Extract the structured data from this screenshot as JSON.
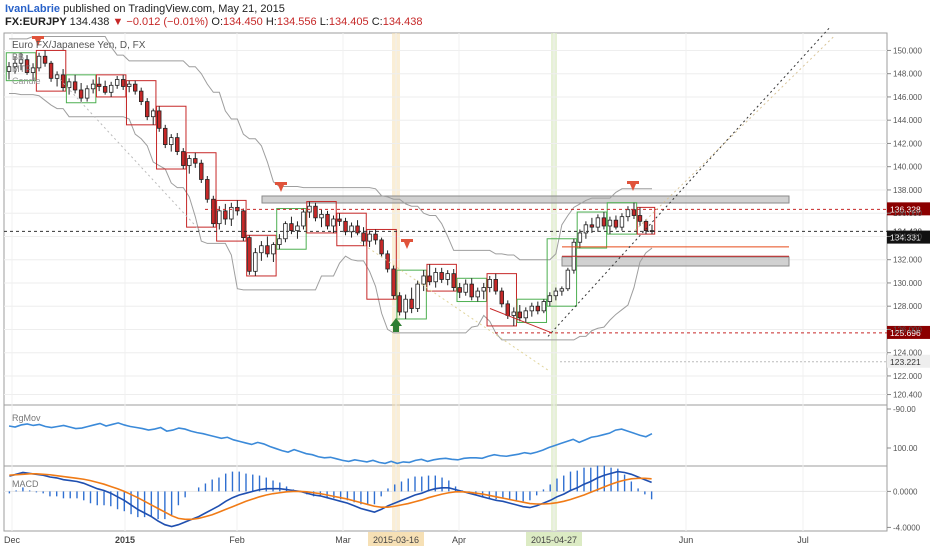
{
  "header": {
    "author": "IvanLabrie",
    "published_text": "published on TradingView.com, May 21, 2015",
    "symbol": "FX:EURJPY",
    "last": "134.438",
    "change": "−0.012 (−0.01%)",
    "open_label": "O:",
    "open": "134.450",
    "high_label": "H:",
    "high": "134.556",
    "low_label": "L:",
    "low": "134.405",
    "close_label": "C:",
    "close": "134.438"
  },
  "legend": {
    "title": "Euro FX/Japanese Yen, D, FX",
    "bb": "BB",
    "mtf": "MTF",
    "other": "Candle"
  },
  "colors": {
    "up": "#2e7d32",
    "down": "#c62828",
    "box_up": "#4caf50",
    "box_down": "#c62828",
    "bb": "#9e9e9e",
    "rgmov": "#3b8ad9",
    "macd": "#1f4fb0",
    "signal": "#f07b16",
    "hist": "#2f6fd1",
    "resistance_zone": "#bdbdbd",
    "level_tag": "#8b0000",
    "price_tag": "#111111"
  },
  "chart_data": [
    {
      "type": "candlestick",
      "title": "Euro FX/Japanese Yen, D, FX",
      "x_tick_labels": [
        "Dec",
        "2015",
        "Feb",
        "Mar",
        "2015-03-16",
        "Apr",
        "2015-04-27",
        "Jun",
        "Jul"
      ],
      "ylim": [
        119.5,
        151.5
      ],
      "y_ticks": [
        "150.000",
        "148.000",
        "146.000",
        "144.000",
        "142.000",
        "140.000",
        "138.000",
        "136.000",
        "134.000",
        "132.000",
        "130.000",
        "128.000",
        "126.000",
        "124.000",
        "122.000",
        "120.400"
      ],
      "ohlc": [
        [
          148.2,
          149.0,
          147.5,
          148.6
        ],
        [
          148.6,
          149.5,
          148.0,
          148.9
        ],
        [
          148.9,
          149.8,
          148.3,
          149.2
        ],
        [
          149.2,
          149.6,
          147.9,
          148.1
        ],
        [
          148.1,
          148.9,
          147.4,
          148.5
        ],
        [
          148.5,
          149.8,
          148.2,
          149.5
        ],
        [
          149.5,
          150.0,
          148.6,
          148.9
        ],
        [
          148.9,
          149.1,
          147.3,
          147.6
        ],
        [
          147.6,
          148.2,
          146.9,
          147.9
        ],
        [
          147.9,
          148.4,
          146.5,
          146.8
        ],
        [
          146.8,
          147.6,
          146.2,
          147.3
        ],
        [
          147.3,
          147.9,
          146.3,
          146.6
        ],
        [
          146.6,
          147.2,
          145.5,
          145.9
        ],
        [
          145.9,
          147.0,
          145.6,
          146.7
        ],
        [
          146.7,
          147.5,
          146.3,
          147.1
        ],
        [
          147.1,
          147.7,
          146.5,
          146.9
        ],
        [
          146.9,
          147.4,
          146.2,
          146.4
        ],
        [
          146.4,
          147.3,
          146.0,
          147.0
        ],
        [
          147.0,
          147.8,
          146.7,
          147.5
        ],
        [
          147.5,
          147.9,
          146.6,
          146.9
        ],
        [
          146.9,
          147.4,
          146.4,
          147.1
        ],
        [
          147.1,
          147.4,
          146.2,
          146.5
        ],
        [
          146.5,
          146.8,
          145.3,
          145.6
        ],
        [
          145.6,
          145.9,
          144.0,
          144.3
        ],
        [
          144.3,
          145.0,
          143.6,
          144.8
        ],
        [
          144.8,
          145.2,
          143.0,
          143.3
        ],
        [
          143.3,
          143.6,
          141.6,
          141.9
        ],
        [
          141.9,
          142.8,
          141.3,
          142.5
        ],
        [
          142.5,
          142.9,
          141.0,
          141.3
        ],
        [
          141.3,
          141.6,
          139.8,
          140.1
        ],
        [
          140.1,
          141.0,
          139.4,
          140.7
        ],
        [
          140.7,
          141.2,
          139.9,
          140.3
        ],
        [
          140.3,
          140.6,
          138.6,
          138.9
        ],
        [
          138.9,
          139.2,
          136.9,
          137.2
        ],
        [
          137.2,
          137.5,
          134.8,
          135.1
        ],
        [
          135.1,
          136.6,
          134.6,
          136.2
        ],
        [
          136.2,
          136.8,
          135.0,
          135.5
        ],
        [
          135.5,
          136.9,
          134.9,
          136.5
        ],
        [
          136.5,
          137.1,
          135.8,
          136.2
        ],
        [
          136.2,
          136.4,
          133.6,
          133.9
        ],
        [
          133.9,
          134.1,
          130.7,
          131.0
        ],
        [
          131.0,
          133.0,
          130.6,
          132.6
        ],
        [
          132.6,
          133.6,
          131.9,
          133.2
        ],
        [
          133.2,
          134.0,
          132.2,
          132.5
        ],
        [
          132.5,
          133.5,
          131.8,
          133.3
        ],
        [
          133.3,
          134.2,
          132.9,
          133.8
        ],
        [
          133.8,
          135.3,
          133.5,
          135.1
        ],
        [
          135.1,
          135.7,
          134.2,
          134.5
        ],
        [
          134.5,
          135.3,
          133.8,
          134.9
        ],
        [
          134.9,
          136.4,
          134.6,
          136.1
        ],
        [
          136.1,
          137.0,
          135.6,
          136.6
        ],
        [
          136.6,
          136.9,
          135.3,
          135.6
        ],
        [
          135.6,
          136.3,
          134.8,
          135.9
        ],
        [
          135.9,
          136.2,
          134.6,
          134.9
        ],
        [
          134.9,
          135.8,
          134.3,
          135.5
        ],
        [
          135.5,
          136.0,
          134.9,
          135.3
        ],
        [
          135.3,
          135.6,
          134.1,
          134.4
        ],
        [
          134.4,
          135.2,
          133.9,
          134.9
        ],
        [
          134.9,
          135.4,
          134.1,
          134.3
        ],
        [
          134.3,
          134.8,
          133.2,
          133.6
        ],
        [
          133.6,
          134.5,
          133.1,
          134.2
        ],
        [
          134.2,
          134.6,
          133.3,
          133.7
        ],
        [
          133.7,
          133.9,
          132.2,
          132.5
        ],
        [
          132.5,
          132.8,
          130.9,
          131.2
        ],
        [
          131.2,
          131.5,
          128.6,
          128.9
        ],
        [
          128.9,
          129.2,
          127.2,
          127.5
        ],
        [
          127.5,
          129.0,
          126.9,
          128.6
        ],
        [
          128.6,
          129.6,
          127.4,
          127.8
        ],
        [
          127.8,
          130.2,
          127.5,
          129.9
        ],
        [
          129.9,
          131.1,
          129.3,
          130.6
        ],
        [
          130.6,
          131.6,
          129.8,
          130.1
        ],
        [
          130.1,
          131.3,
          129.6,
          130.9
        ],
        [
          130.9,
          131.3,
          130.0,
          130.3
        ],
        [
          130.3,
          131.1,
          129.8,
          130.8
        ],
        [
          130.8,
          131.2,
          129.3,
          129.6
        ],
        [
          129.6,
          130.0,
          128.7,
          129.2
        ],
        [
          129.2,
          130.3,
          128.9,
          129.9
        ],
        [
          129.9,
          130.4,
          128.5,
          128.8
        ],
        [
          128.8,
          129.6,
          128.4,
          129.3
        ],
        [
          129.3,
          130.0,
          128.6,
          129.6
        ],
        [
          129.6,
          130.6,
          129.2,
          130.3
        ],
        [
          130.3,
          130.8,
          129.0,
          129.3
        ],
        [
          129.3,
          129.6,
          127.9,
          128.2
        ],
        [
          128.2,
          128.5,
          126.9,
          127.2
        ],
        [
          127.2,
          127.9,
          126.3,
          127.5
        ],
        [
          127.5,
          128.1,
          126.7,
          127.0
        ],
        [
          127.0,
          127.9,
          126.6,
          127.6
        ],
        [
          127.6,
          128.3,
          127.1,
          128.0
        ],
        [
          128.0,
          128.4,
          127.3,
          127.6
        ],
        [
          127.6,
          128.6,
          127.4,
          128.4
        ],
        [
          128.4,
          129.2,
          128.0,
          128.9
        ],
        [
          128.9,
          129.6,
          128.5,
          129.3
        ],
        [
          129.3,
          129.7,
          128.9,
          129.5
        ],
        [
          129.5,
          131.3,
          129.3,
          131.1
        ],
        [
          131.1,
          133.8,
          130.8,
          133.5
        ],
        [
          133.5,
          134.6,
          133.0,
          134.3
        ],
        [
          134.3,
          135.3,
          133.8,
          135.0
        ],
        [
          135.0,
          135.6,
          134.3,
          134.8
        ],
        [
          134.8,
          135.9,
          134.4,
          135.6
        ],
        [
          135.6,
          136.1,
          134.6,
          134.9
        ],
        [
          134.9,
          135.7,
          134.2,
          135.4
        ],
        [
          135.4,
          135.8,
          134.6,
          134.8
        ],
        [
          134.8,
          136.0,
          134.5,
          135.7
        ],
        [
          135.7,
          136.6,
          135.3,
          136.3
        ],
        [
          136.3,
          136.9,
          135.5,
          135.8
        ],
        [
          135.8,
          136.5,
          134.9,
          135.3
        ],
        [
          135.3,
          135.5,
          134.2,
          134.5
        ],
        [
          134.5,
          135.0,
          134.2,
          134.44
        ]
      ]
    },
    {
      "type": "line",
      "title": "RgMov",
      "y_ticks": [
        "-90.00",
        "100.00"
      ],
      "series": [
        {
          "values": [
            -58,
            -56,
            -60,
            -62,
            -59,
            -61,
            -57,
            -55,
            -57,
            -59,
            -56,
            -53,
            -54,
            -57,
            -60,
            -63,
            -58,
            -61,
            -64,
            -60,
            -57,
            -55,
            -53,
            -50,
            -52,
            -55,
            -48,
            -50,
            -54,
            -52,
            -48,
            -45,
            -43,
            -40,
            -37,
            -34,
            -36,
            -31,
            -28,
            -25,
            -22,
            -26,
            -23,
            -18,
            -14,
            -10,
            -7,
            -12,
            -8,
            -4,
            -2,
            2,
            4,
            3,
            6,
            9,
            11,
            8,
            10,
            12,
            9,
            13,
            15,
            11,
            15,
            12,
            13,
            9,
            7,
            11,
            8,
            6,
            5,
            7,
            8,
            5,
            4,
            4,
            5,
            1,
            -2,
            0,
            1,
            -1,
            -3,
            -6,
            -4,
            -7,
            -11,
            -16,
            -20,
            -24,
            -28,
            -32,
            -26,
            -31,
            -36,
            -38,
            -41,
            -44,
            -50,
            -52,
            -48,
            -44,
            -40,
            -37,
            -43
          ]
        }
      ]
    },
    {
      "type": "line",
      "title": "MACD",
      "y_ticks": [
        "0.0000",
        "-4.0000"
      ],
      "series": [
        {
          "name": "MACD",
          "values": [
            1.7,
            1.9,
            2.1,
            2.0,
            1.9,
            1.8,
            1.6,
            1.5,
            1.3,
            1.2,
            1.1,
            0.9,
            0.6,
            0.3,
            0.1,
            -0.2,
            -0.6,
            -1.0,
            -1.5,
            -2.0,
            -2.4,
            -2.8,
            -3.3,
            -3.7,
            -3.9,
            -3.7,
            -3.4,
            -3.1,
            -2.8,
            -2.4,
            -2.0,
            -1.6,
            -1.1,
            -0.7,
            -0.4,
            -0.2,
            0.0,
            0.2,
            0.3,
            0.3,
            0.3,
            0.2,
            0.1,
            0.0,
            -0.2,
            -0.4,
            -0.5,
            -0.7,
            -0.9,
            -1.1,
            -1.3,
            -1.6,
            -1.9,
            -2.1,
            -2.3,
            -2.0,
            -1.6,
            -1.3,
            -1.0,
            -0.7,
            -0.4,
            -0.2,
            0.1,
            0.3,
            0.4,
            0.4,
            0.2,
            0.0,
            -0.2,
            -0.4,
            -0.6,
            -0.8,
            -1.0,
            -1.1,
            -1.3,
            -1.5,
            -1.7,
            -1.8,
            -1.6,
            -1.3,
            -1.0,
            -0.6,
            -0.3,
            0.1,
            0.4,
            0.8,
            1.1,
            1.5,
            1.8,
            2.0,
            2.2,
            2.1,
            1.9,
            1.6,
            1.3,
            1.0
          ]
        },
        {
          "name": "Signal",
          "values": [
            1.8,
            1.85,
            1.9,
            1.95,
            1.95,
            1.9,
            1.85,
            1.75,
            1.65,
            1.55,
            1.45,
            1.35,
            1.2,
            1.0,
            0.8,
            0.55,
            0.3,
            0.0,
            -0.35,
            -0.7,
            -1.1,
            -1.5,
            -1.9,
            -2.3,
            -2.7,
            -3.0,
            -3.1,
            -3.1,
            -3.0,
            -2.8,
            -2.6,
            -2.3,
            -2.0,
            -1.7,
            -1.4,
            -1.1,
            -0.85,
            -0.6,
            -0.4,
            -0.25,
            -0.15,
            -0.05,
            0.0,
            0.0,
            -0.05,
            -0.15,
            -0.25,
            -0.4,
            -0.55,
            -0.7,
            -0.85,
            -1.05,
            -1.25,
            -1.45,
            -1.65,
            -1.75,
            -1.75,
            -1.65,
            -1.5,
            -1.35,
            -1.15,
            -0.95,
            -0.7,
            -0.5,
            -0.3,
            -0.15,
            -0.05,
            -0.05,
            -0.1,
            -0.2,
            -0.3,
            -0.45,
            -0.6,
            -0.75,
            -0.9,
            -1.05,
            -1.2,
            -1.35,
            -1.4,
            -1.4,
            -1.35,
            -1.25,
            -1.1,
            -0.9,
            -0.65,
            -0.4,
            -0.1,
            0.2,
            0.5,
            0.8,
            1.05,
            1.25,
            1.4,
            1.45,
            1.45,
            1.4
          ]
        }
      ]
    }
  ],
  "annotations": {
    "level_136": "136.328",
    "last_price": "134.438",
    "level_134": "134.331",
    "level_125": "125.696",
    "level_123": "123.221"
  }
}
